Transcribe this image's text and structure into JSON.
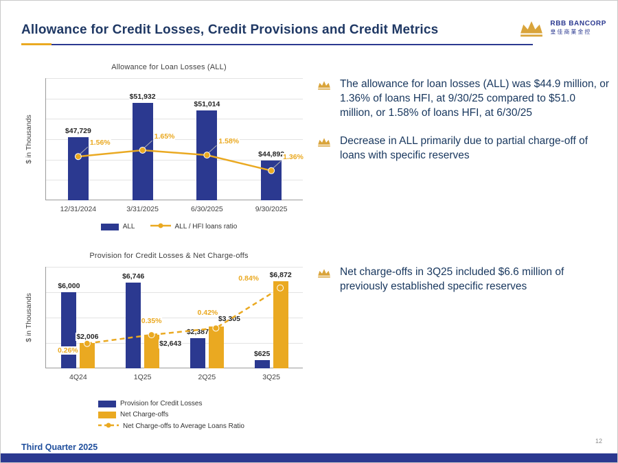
{
  "page": {
    "title": "Allowance for Credit Losses, Credit Provisions and Credit Metrics",
    "footer_left": "Third Quarter 2025",
    "page_number": "12"
  },
  "logo": {
    "name": "RBB Bancorp",
    "subtext": "皇佳商業金控",
    "crown_color": "#D9A43B"
  },
  "colors": {
    "navy": "#2B3990",
    "gold": "#EAA921",
    "title_text": "#1F3864",
    "bullet_text": "#17365D"
  },
  "bullets": {
    "top": [
      "The allowance for loan losses (ALL) was $44.9 million, or 1.36% of loans HFI, at 9/30/25 compared to $51.0 million, or 1.58% of loans HFI, at 6/30/25",
      "Decrease in ALL primarily due to partial charge-off of loans with specific reserves"
    ],
    "bottom": [
      "Net charge-offs in 3Q25 included $6.6 million of previously established specific reserves"
    ]
  },
  "chart_data": [
    {
      "type": "bar",
      "title": "Allowance for Loan Losses (ALL)",
      "ylabel": "$ in Thousands",
      "xlabel": "",
      "categories": [
        "12/31/2024",
        "3/31/2025",
        "6/30/2025",
        "9/30/2025"
      ],
      "ylim": [
        40000,
        55000
      ],
      "ratio_ylim": [
        0.94,
        2.67
      ],
      "grid": true,
      "legend_position": "bottom-center",
      "series": [
        {
          "name": "ALL",
          "type": "bar",
          "color": "#2B3990",
          "values": [
            47729,
            51932,
            51014,
            44892
          ],
          "labels": [
            "$47,729",
            "$51,932",
            "$51,014",
            "$44,892"
          ]
        },
        {
          "name": "ALL / HFI loans ratio",
          "type": "line",
          "color": "#EAA921",
          "dash": false,
          "values": [
            1.56,
            1.65,
            1.58,
            1.36
          ],
          "labels": [
            "1.56%",
            "1.65%",
            "1.58%",
            "1.36%"
          ]
        }
      ]
    },
    {
      "type": "bar",
      "title": "Provision for Credit Losses & Net Charge-offs",
      "ylabel": "$ in Thousands",
      "xlabel": "",
      "categories": [
        "4Q24",
        "1Q25",
        "2Q25",
        "3Q25"
      ],
      "ylim": [
        0,
        8000
      ],
      "ratio_ylim": [
        0,
        1.06
      ],
      "grid": true,
      "legend_position": "bottom-left",
      "series": [
        {
          "name": "Provision for Credit Losses",
          "type": "bar",
          "color": "#2B3990",
          "values": [
            6000,
            6746,
            2387,
            625
          ],
          "labels": [
            "$6,000",
            "$6,746",
            "$2,387",
            "$625"
          ]
        },
        {
          "name": "Net Charge-offs",
          "type": "bar",
          "color": "#EAA921",
          "values": [
            2006,
            2643,
            3305,
            6872
          ],
          "labels": [
            "$2,006",
            "$2,643",
            "$3,305",
            "$6,872"
          ]
        },
        {
          "name": "Net Charge-offs to Average Loans Ratio",
          "type": "line",
          "color": "#EAA921",
          "dash": true,
          "values": [
            0.26,
            0.35,
            0.42,
            0.84
          ],
          "labels": [
            "0.26%",
            "0.35%",
            "0.42%",
            "0.84%"
          ]
        }
      ]
    }
  ]
}
